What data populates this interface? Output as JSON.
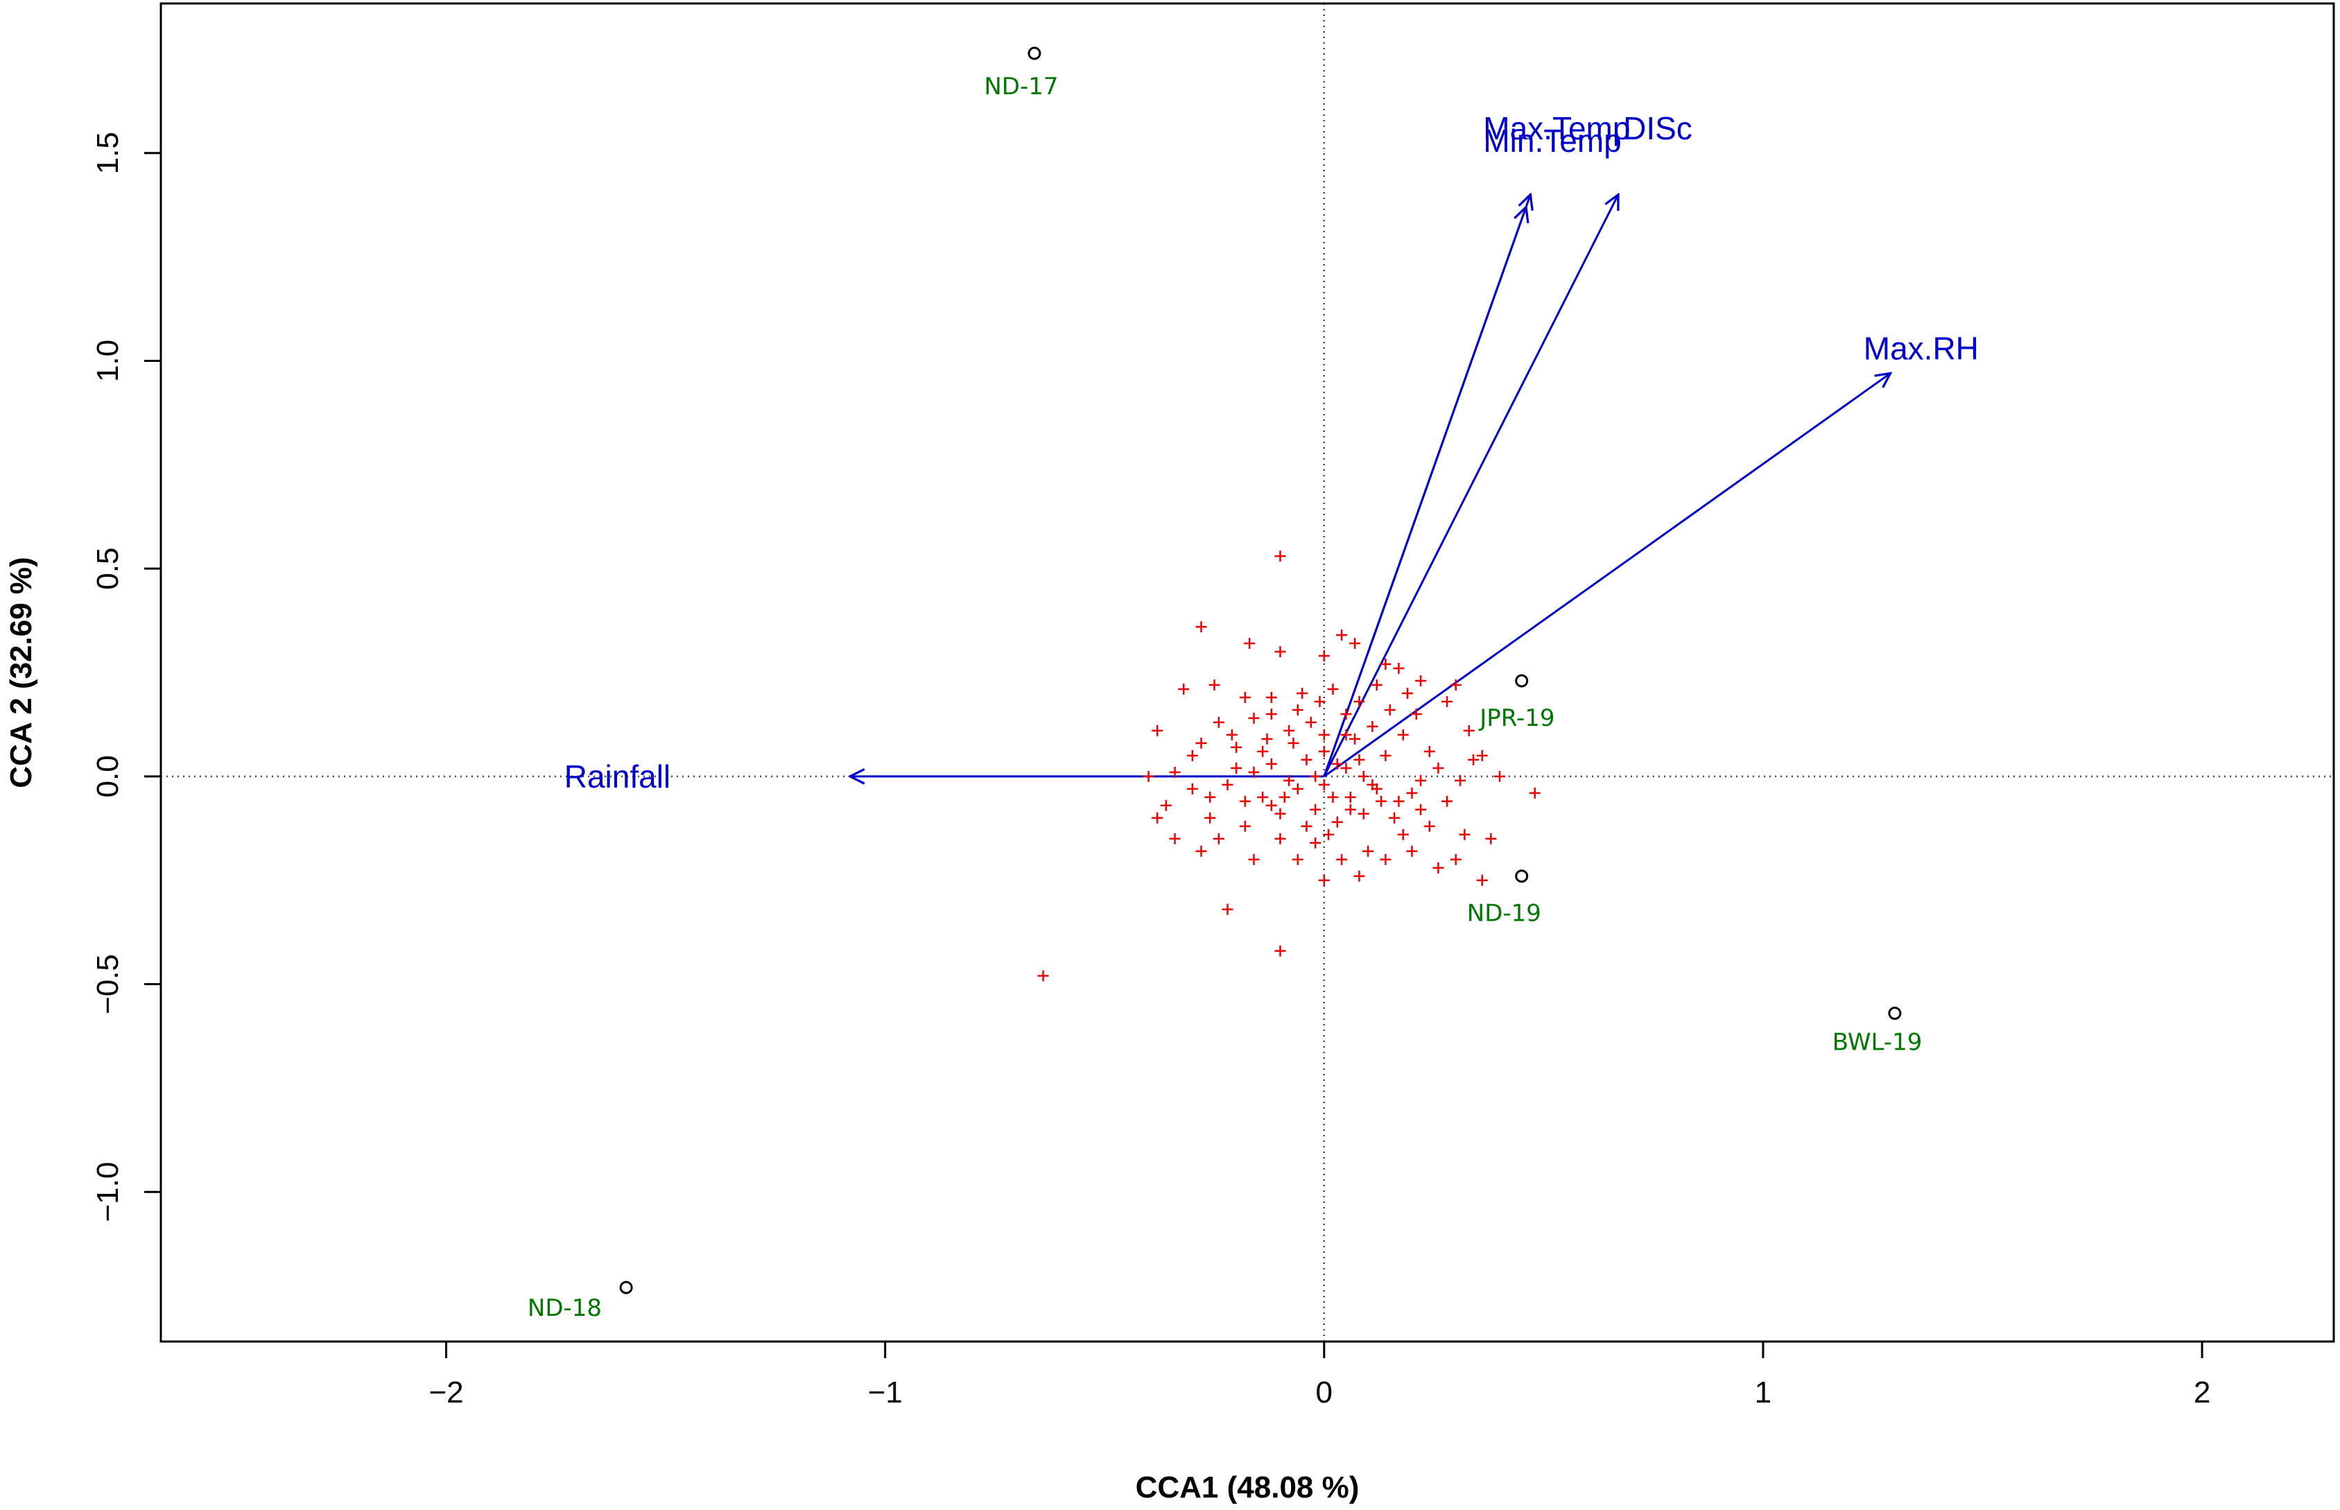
{
  "chart_data": {
    "type": "scatter",
    "subtype": "cca-triplot",
    "title": "",
    "xlabel": "CCA1 (48.08 %)",
    "ylabel": "CCA 2 (32.69 %)",
    "xlim": [
      -2.65,
      2.3
    ],
    "ylim": [
      -1.36,
      1.86
    ],
    "x_ticks": [
      -2,
      -1,
      0,
      1,
      2
    ],
    "x_tick_labels": [
      "−2",
      "−1",
      "0",
      "1",
      "2"
    ],
    "y_ticks": [
      -1.0,
      -0.5,
      0.0,
      0.5,
      1.0,
      1.5
    ],
    "y_tick_labels": [
      "−1.0",
      "−0.5",
      "0.0",
      "0.5",
      "1.0",
      "1.5"
    ],
    "reference_lines": {
      "x": 0,
      "y": 0,
      "style": "dotted"
    },
    "colors": {
      "arrows": "#0000cc",
      "arrow_labels": "#0000cc",
      "species": "#ee0000",
      "sites": "#000000",
      "site_labels": "#007700",
      "reference_lines": "#444444"
    },
    "biplot_arrows": [
      {
        "name": "Max.Temp",
        "x": 0.47,
        "y": 1.4
      },
      {
        "name": "Min.Temp",
        "x": 0.46,
        "y": 1.37
      },
      {
        "name": "DISc",
        "x": 0.67,
        "y": 1.4
      },
      {
        "name": "Max.RH",
        "x": 1.29,
        "y": 0.97
      },
      {
        "name": "Rainfall",
        "x": -1.08,
        "y": 0.0
      }
    ],
    "arrow_labels": [
      {
        "name": "Max.Temp",
        "x": 0.53,
        "y": 1.56
      },
      {
        "name": "Min.Temp",
        "x": 0.52,
        "y": 1.53
      },
      {
        "name": "DISc",
        "x": 0.76,
        "y": 1.56
      },
      {
        "name": "Max.RH",
        "x": 1.36,
        "y": 1.03
      },
      {
        "name": "Rainfall",
        "x": -1.61,
        "y": 0.0
      }
    ],
    "sites": [
      {
        "name": "ND-17",
        "x": -0.66,
        "y": 1.74,
        "label_x": -0.69,
        "label_y": 1.66
      },
      {
        "name": "JPR-19",
        "x": 0.45,
        "y": 0.23,
        "label_x": 0.44,
        "label_y": 0.14
      },
      {
        "name": "ND-19",
        "x": 0.45,
        "y": -0.24,
        "label_x": 0.41,
        "label_y": -0.33
      },
      {
        "name": "BWL-19",
        "x": 1.3,
        "y": -0.57,
        "label_x": 1.26,
        "label_y": -0.64
      },
      {
        "name": "ND-18",
        "x": -1.59,
        "y": -1.23,
        "label_x": -1.73,
        "label_y": -1.28
      }
    ],
    "species_points": [
      [
        -0.1,
        0.53
      ],
      [
        -0.28,
        0.36
      ],
      [
        -0.17,
        0.32
      ],
      [
        -0.1,
        0.3
      ],
      [
        0.04,
        0.34
      ],
      [
        0.07,
        0.32
      ],
      [
        -0.25,
        0.22
      ],
      [
        -0.32,
        0.21
      ],
      [
        -0.18,
        0.19
      ],
      [
        -0.12,
        0.19
      ],
      [
        0.0,
        0.29
      ],
      [
        0.14,
        0.27
      ],
      [
        0.17,
        0.26
      ],
      [
        0.22,
        0.23
      ],
      [
        0.3,
        0.22
      ],
      [
        -0.38,
        0.11
      ],
      [
        -0.28,
        0.08
      ],
      [
        -0.24,
        0.13
      ],
      [
        -0.2,
        0.07
      ],
      [
        -0.16,
        0.14
      ],
      [
        -0.14,
        0.06
      ],
      [
        -0.12,
        0.15
      ],
      [
        -0.08,
        0.11
      ],
      [
        -0.05,
        0.2
      ],
      [
        -0.03,
        0.13
      ],
      [
        -0.01,
        0.18
      ],
      [
        0.02,
        0.21
      ],
      [
        0.05,
        0.15
      ],
      [
        0.08,
        0.18
      ],
      [
        0.11,
        0.12
      ],
      [
        0.12,
        0.22
      ],
      [
        0.15,
        0.16
      ],
      [
        0.18,
        0.1
      ],
      [
        0.21,
        0.15
      ],
      [
        0.24,
        0.06
      ],
      [
        0.28,
        0.18
      ],
      [
        0.33,
        0.11
      ],
      [
        0.36,
        0.05
      ],
      [
        0.4,
        0.0
      ],
      [
        0.48,
        -0.04
      ],
      [
        -0.4,
        0.0
      ],
      [
        -0.36,
        -0.07
      ],
      [
        -0.3,
        -0.03
      ],
      [
        -0.26,
        -0.1
      ],
      [
        -0.22,
        -0.02
      ],
      [
        -0.18,
        -0.12
      ],
      [
        -0.14,
        -0.05
      ],
      [
        -0.1,
        -0.09
      ],
      [
        -0.06,
        -0.03
      ],
      [
        -0.02,
        -0.08
      ],
      [
        0.0,
        -0.02
      ],
      [
        0.03,
        -0.11
      ],
      [
        0.06,
        -0.05
      ],
      [
        0.09,
        -0.09
      ],
      [
        0.12,
        -0.03
      ],
      [
        0.16,
        -0.1
      ],
      [
        0.2,
        -0.04
      ],
      [
        0.24,
        -0.12
      ],
      [
        0.28,
        -0.06
      ],
      [
        0.32,
        -0.14
      ],
      [
        -0.38,
        -0.1
      ],
      [
        -0.34,
        -0.15
      ],
      [
        -0.24,
        -0.15
      ],
      [
        -0.16,
        -0.2
      ],
      [
        -0.1,
        -0.15
      ],
      [
        -0.06,
        -0.2
      ],
      [
        -0.02,
        -0.16
      ],
      [
        0.04,
        -0.2
      ],
      [
        0.08,
        -0.24
      ],
      [
        0.1,
        -0.18
      ],
      [
        0.14,
        -0.2
      ],
      [
        0.2,
        -0.18
      ],
      [
        0.26,
        -0.22
      ],
      [
        0.3,
        -0.2
      ],
      [
        0.38,
        -0.15
      ],
      [
        -0.22,
        -0.32
      ],
      [
        -0.1,
        -0.42
      ],
      [
        -0.64,
        -0.48
      ],
      [
        0.0,
        -0.25
      ],
      [
        0.36,
        -0.25
      ],
      [
        -0.2,
        0.02
      ],
      [
        -0.16,
        0.01
      ],
      [
        -0.12,
        0.03
      ],
      [
        -0.08,
        -0.01
      ],
      [
        -0.04,
        0.04
      ],
      [
        0.0,
        0.06
      ],
      [
        0.02,
        -0.05
      ],
      [
        0.05,
        0.02
      ],
      [
        0.08,
        0.04
      ],
      [
        0.11,
        -0.02
      ],
      [
        0.14,
        0.05
      ],
      [
        0.17,
        -0.06
      ],
      [
        -0.3,
        0.05
      ],
      [
        -0.34,
        0.01
      ],
      [
        -0.26,
        -0.05
      ],
      [
        -0.21,
        0.1
      ],
      [
        -0.07,
        0.08
      ],
      [
        0.07,
        0.09
      ],
      [
        0.22,
        -0.01
      ],
      [
        0.26,
        0.02
      ],
      [
        -0.12,
        -0.07
      ],
      [
        -0.04,
        -0.12
      ],
      [
        0.01,
        -0.14
      ],
      [
        0.18,
        -0.14
      ],
      [
        0.22,
        -0.08
      ],
      [
        -0.18,
        -0.06
      ],
      [
        -0.09,
        -0.05
      ],
      [
        0.13,
        -0.06
      ],
      [
        0.31,
        -0.01
      ],
      [
        0.34,
        0.04
      ],
      [
        -0.28,
        -0.18
      ],
      [
        -0.06,
        0.16
      ],
      [
        0.05,
        0.1
      ],
      [
        0.19,
        0.2
      ],
      [
        0.09,
        0.0
      ],
      [
        -0.13,
        0.09
      ],
      [
        0.0,
        0.1
      ],
      [
        -0.02,
        0.0
      ],
      [
        0.03,
        0.03
      ],
      [
        0.06,
        -0.08
      ]
    ]
  }
}
